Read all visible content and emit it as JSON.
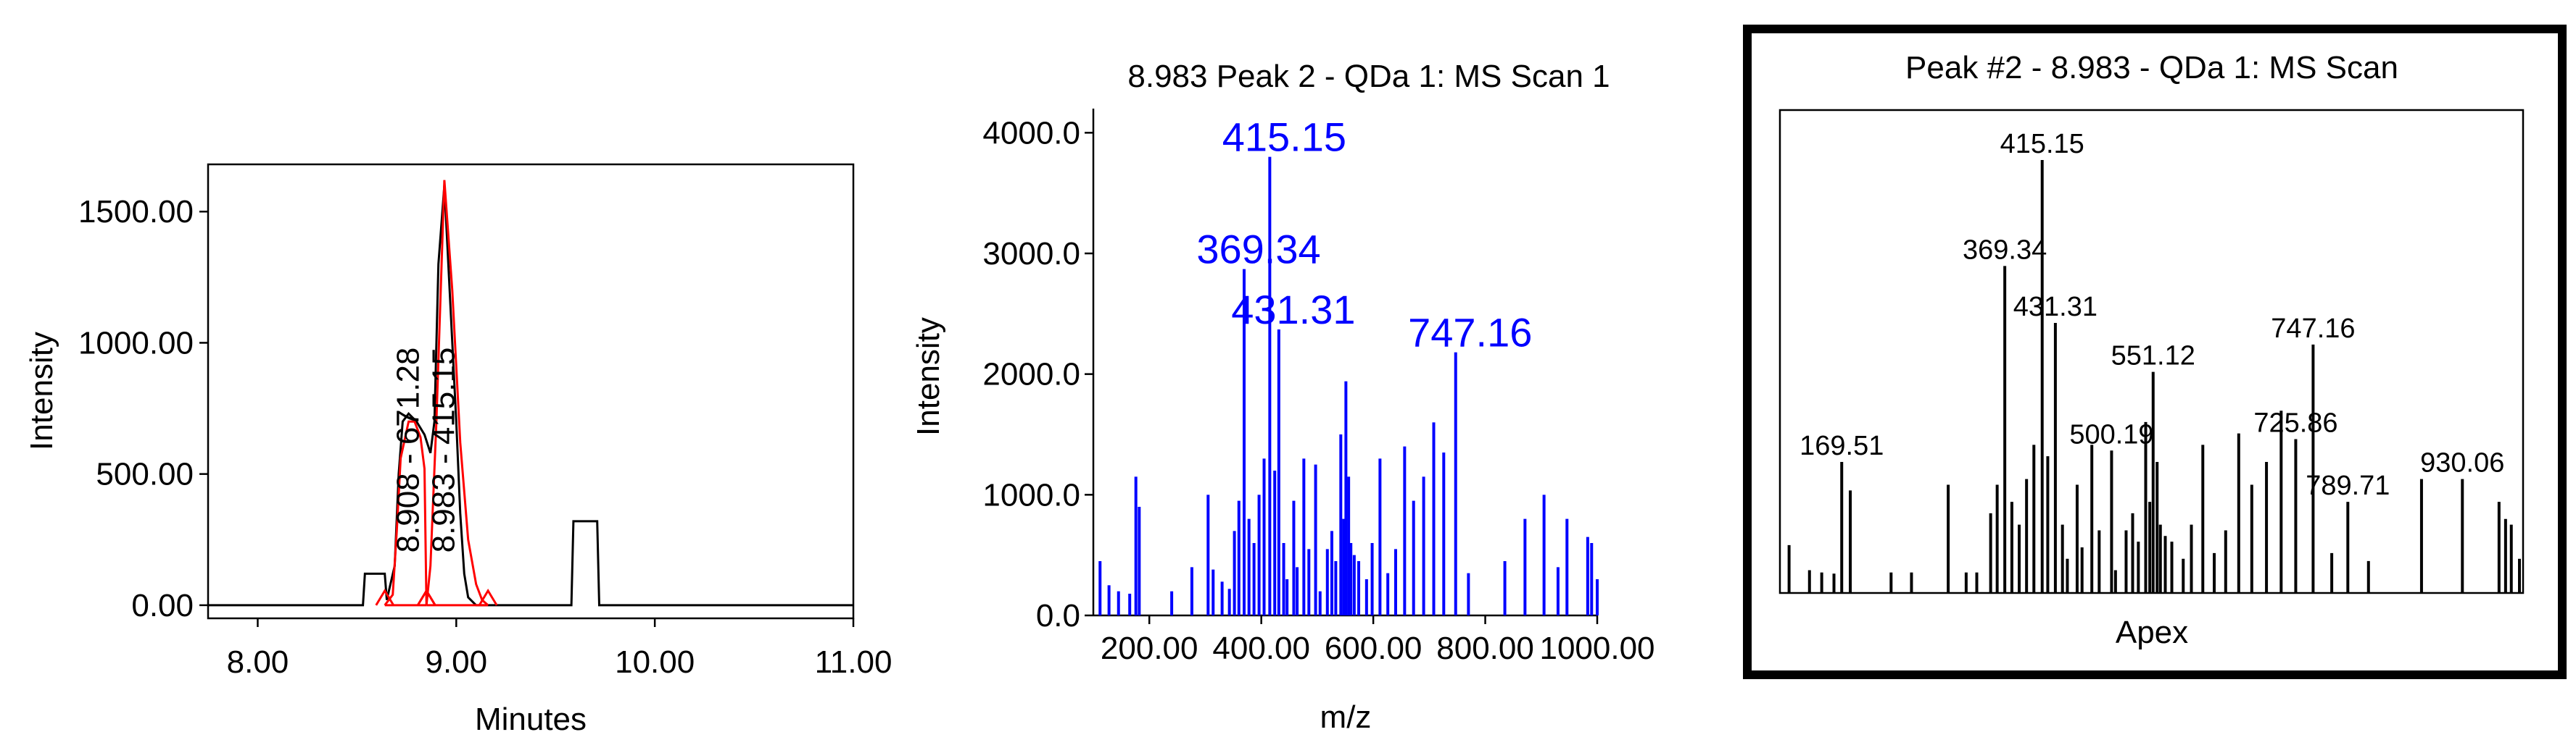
{
  "chart_data": [
    {
      "type": "line",
      "title": "",
      "xlabel": "Minutes",
      "ylabel": "Intensity",
      "xlim": [
        7.75,
        11.0
      ],
      "ylim": [
        -50,
        1680
      ],
      "x_ticks": [
        "8.00",
        "9.00",
        "10.00",
        "11.00"
      ],
      "x_tick_values": [
        8.0,
        9.0,
        10.0,
        11.0
      ],
      "y_ticks": [
        "0.00",
        "500.00",
        "1000.00",
        "1500.00"
      ],
      "y_tick_values": [
        0,
        500,
        1000,
        1500
      ],
      "colors": {
        "tic": "#000000",
        "peaks": "#ff0000"
      },
      "series": [
        {
          "values": [
            [
              7.75,
              0
            ],
            [
              8.53,
              0
            ],
            [
              8.54,
              120
            ],
            [
              8.64,
              120
            ],
            [
              8.65,
              20
            ],
            [
              8.69,
              150
            ],
            [
              8.71,
              500
            ],
            [
              8.73,
              700
            ],
            [
              8.76,
              730
            ],
            [
              8.8,
              700
            ],
            [
              8.84,
              650
            ],
            [
              8.87,
              580
            ],
            [
              8.89,
              700
            ],
            [
              8.91,
              1300
            ],
            [
              8.94,
              1600
            ],
            [
              8.97,
              1150
            ],
            [
              9.0,
              700
            ],
            [
              9.02,
              350
            ],
            [
              9.04,
              120
            ],
            [
              9.06,
              30
            ],
            [
              9.1,
              0
            ],
            [
              9.58,
              0
            ],
            [
              9.59,
              320
            ],
            [
              9.71,
              320
            ],
            [
              9.72,
              0
            ],
            [
              11.0,
              0
            ]
          ]
        },
        {
          "values": [
            [
              8.64,
              0
            ],
            [
              8.68,
              40
            ],
            [
              8.7,
              280
            ],
            [
              8.72,
              560
            ],
            [
              8.76,
              700
            ],
            [
              8.79,
              700
            ],
            [
              8.82,
              640
            ],
            [
              8.84,
              520
            ],
            [
              8.85,
              0
            ]
          ]
        },
        {
          "values": [
            [
              8.85,
              0
            ],
            [
              8.87,
              150
            ],
            [
              8.9,
              700
            ],
            [
              8.94,
              1620
            ],
            [
              8.98,
              1200
            ],
            [
              9.02,
              620
            ],
            [
              9.06,
              250
            ],
            [
              9.1,
              80
            ],
            [
              9.13,
              20
            ],
            [
              9.16,
              0
            ]
          ]
        }
      ],
      "annotations": [
        {
          "text": "8.908 - 671.28",
          "x": 8.81,
          "y": 200
        },
        {
          "text": "8.983 - 415.15",
          "x": 8.99,
          "y": 200
        }
      ]
    },
    {
      "type": "bar",
      "title": "8.983 Peak 2 - QDa 1: MS Scan 1",
      "xlabel": "m/z",
      "ylabel": "Intensity",
      "xlim": [
        100,
        1000
      ],
      "ylim": [
        0,
        4200
      ],
      "x_ticks": [
        "200.00",
        "400.00",
        "600.00",
        "800.00",
        "1000.00"
      ],
      "x_tick_values": [
        200,
        400,
        600,
        800,
        1000
      ],
      "y_ticks": [
        "0.0",
        "1000.0",
        "2000.0",
        "3000.0",
        "4000.0"
      ],
      "y_tick_values": [
        0,
        1000,
        2000,
        3000,
        4000
      ],
      "colors": {
        "sticks": "#0000ff"
      },
      "sticks": [
        [
          112,
          450
        ],
        [
          128,
          250
        ],
        [
          145,
          200
        ],
        [
          165,
          180
        ],
        [
          176,
          1150
        ],
        [
          182,
          900
        ],
        [
          240,
          200
        ],
        [
          276,
          400
        ],
        [
          305,
          1000
        ],
        [
          314,
          380
        ],
        [
          330,
          280
        ],
        [
          343,
          220
        ],
        [
          352,
          700
        ],
        [
          360,
          950
        ],
        [
          369.34,
          2870
        ],
        [
          378,
          800
        ],
        [
          387,
          600
        ],
        [
          396,
          1000
        ],
        [
          405,
          1300
        ],
        [
          415.15,
          3800
        ],
        [
          424,
          1200
        ],
        [
          431.31,
          2370
        ],
        [
          440,
          600
        ],
        [
          446,
          300
        ],
        [
          458,
          950
        ],
        [
          464,
          400
        ],
        [
          476,
          1300
        ],
        [
          485,
          550
        ],
        [
          497,
          1250
        ],
        [
          505,
          200
        ],
        [
          518,
          550
        ],
        [
          526,
          700
        ],
        [
          533,
          450
        ],
        [
          542,
          1500
        ],
        [
          547,
          800
        ],
        [
          551.12,
          1940
        ],
        [
          556,
          1150
        ],
        [
          560,
          600
        ],
        [
          566,
          500
        ],
        [
          574,
          450
        ],
        [
          588,
          300
        ],
        [
          598,
          600
        ],
        [
          612,
          1300
        ],
        [
          626,
          350
        ],
        [
          640,
          550
        ],
        [
          656,
          1400
        ],
        [
          672,
          950
        ],
        [
          690,
          1150
        ],
        [
          708,
          1600
        ],
        [
          725.86,
          1350
        ],
        [
          747.16,
          2180
        ],
        [
          770,
          350
        ],
        [
          835,
          450
        ],
        [
          871,
          800
        ],
        [
          905,
          1000
        ],
        [
          930,
          400
        ],
        [
          946,
          800
        ],
        [
          983,
          650
        ],
        [
          990,
          600
        ],
        [
          1000,
          300
        ]
      ],
      "labels": [
        {
          "text": "415.15",
          "mz": 415.15,
          "y": 3800
        },
        {
          "text": "369.34",
          "mz": 369.34,
          "y": 2870
        },
        {
          "text": "431.31",
          "mz": 431.31,
          "y": 2370
        },
        {
          "text": "747.16",
          "mz": 747.16,
          "y": 2180
        }
      ]
    },
    {
      "type": "bar",
      "title": "Peak #2 - 8.983 - QDa 1: MS Scan",
      "xlabel": "Apex",
      "xlim": [
        100,
        1000
      ],
      "ylim": [
        0,
        4200
      ],
      "colors": {
        "sticks": "#000000"
      },
      "sticks": [
        [
          105,
          420
        ],
        [
          130,
          200
        ],
        [
          145,
          180
        ],
        [
          160,
          170
        ],
        [
          169.51,
          1150
        ],
        [
          180,
          900
        ],
        [
          230,
          180
        ],
        [
          255,
          180
        ],
        [
          300,
          950
        ],
        [
          322,
          180
        ],
        [
          335,
          180
        ],
        [
          352,
          700
        ],
        [
          360,
          950
        ],
        [
          369.34,
          2870
        ],
        [
          378,
          800
        ],
        [
          387,
          600
        ],
        [
          396,
          1000
        ],
        [
          405,
          1300
        ],
        [
          415.15,
          3800
        ],
        [
          422,
          1200
        ],
        [
          431.31,
          2370
        ],
        [
          440,
          600
        ],
        [
          446,
          300
        ],
        [
          458,
          950
        ],
        [
          464,
          400
        ],
        [
          476,
          1300
        ],
        [
          485,
          550
        ],
        [
          500.19,
          1250
        ],
        [
          505,
          200
        ],
        [
          518,
          550
        ],
        [
          526,
          700
        ],
        [
          533,
          450
        ],
        [
          542,
          1500
        ],
        [
          547,
          800
        ],
        [
          551.12,
          1940
        ],
        [
          556,
          1150
        ],
        [
          560,
          600
        ],
        [
          566,
          500
        ],
        [
          574,
          450
        ],
        [
          588,
          300
        ],
        [
          598,
          600
        ],
        [
          612,
          1300
        ],
        [
          626,
          350
        ],
        [
          640,
          550
        ],
        [
          656,
          1400
        ],
        [
          672,
          950
        ],
        [
          690,
          1150
        ],
        [
          708,
          1600
        ],
        [
          725.86,
          1350
        ],
        [
          747.16,
          2180
        ],
        [
          770,
          350
        ],
        [
          789.71,
          800
        ],
        [
          815,
          280
        ],
        [
          880,
          1000
        ],
        [
          930.06,
          1000
        ],
        [
          975,
          800
        ],
        [
          983,
          650
        ],
        [
          990,
          600
        ],
        [
          1000,
          300
        ]
      ],
      "labels": [
        {
          "text": "415.15",
          "mz": 415.15,
          "y": 3800
        },
        {
          "text": "369.34",
          "mz": 369.34,
          "y": 2870
        },
        {
          "text": "431.31",
          "mz": 431.31,
          "y": 2370
        },
        {
          "text": "551.12",
          "mz": 551.12,
          "y": 1940
        },
        {
          "text": "747.16",
          "mz": 747.16,
          "y": 2180
        },
        {
          "text": "500.19",
          "mz": 500.19,
          "y": 1250
        },
        {
          "text": "725.86",
          "mz": 725.86,
          "y": 1350
        },
        {
          "text": "169.51",
          "mz": 169.51,
          "y": 1150
        },
        {
          "text": "789.71",
          "mz": 789.71,
          "y": 800
        },
        {
          "text": "930.06",
          "mz": 930.06,
          "y": 1000
        }
      ]
    }
  ]
}
